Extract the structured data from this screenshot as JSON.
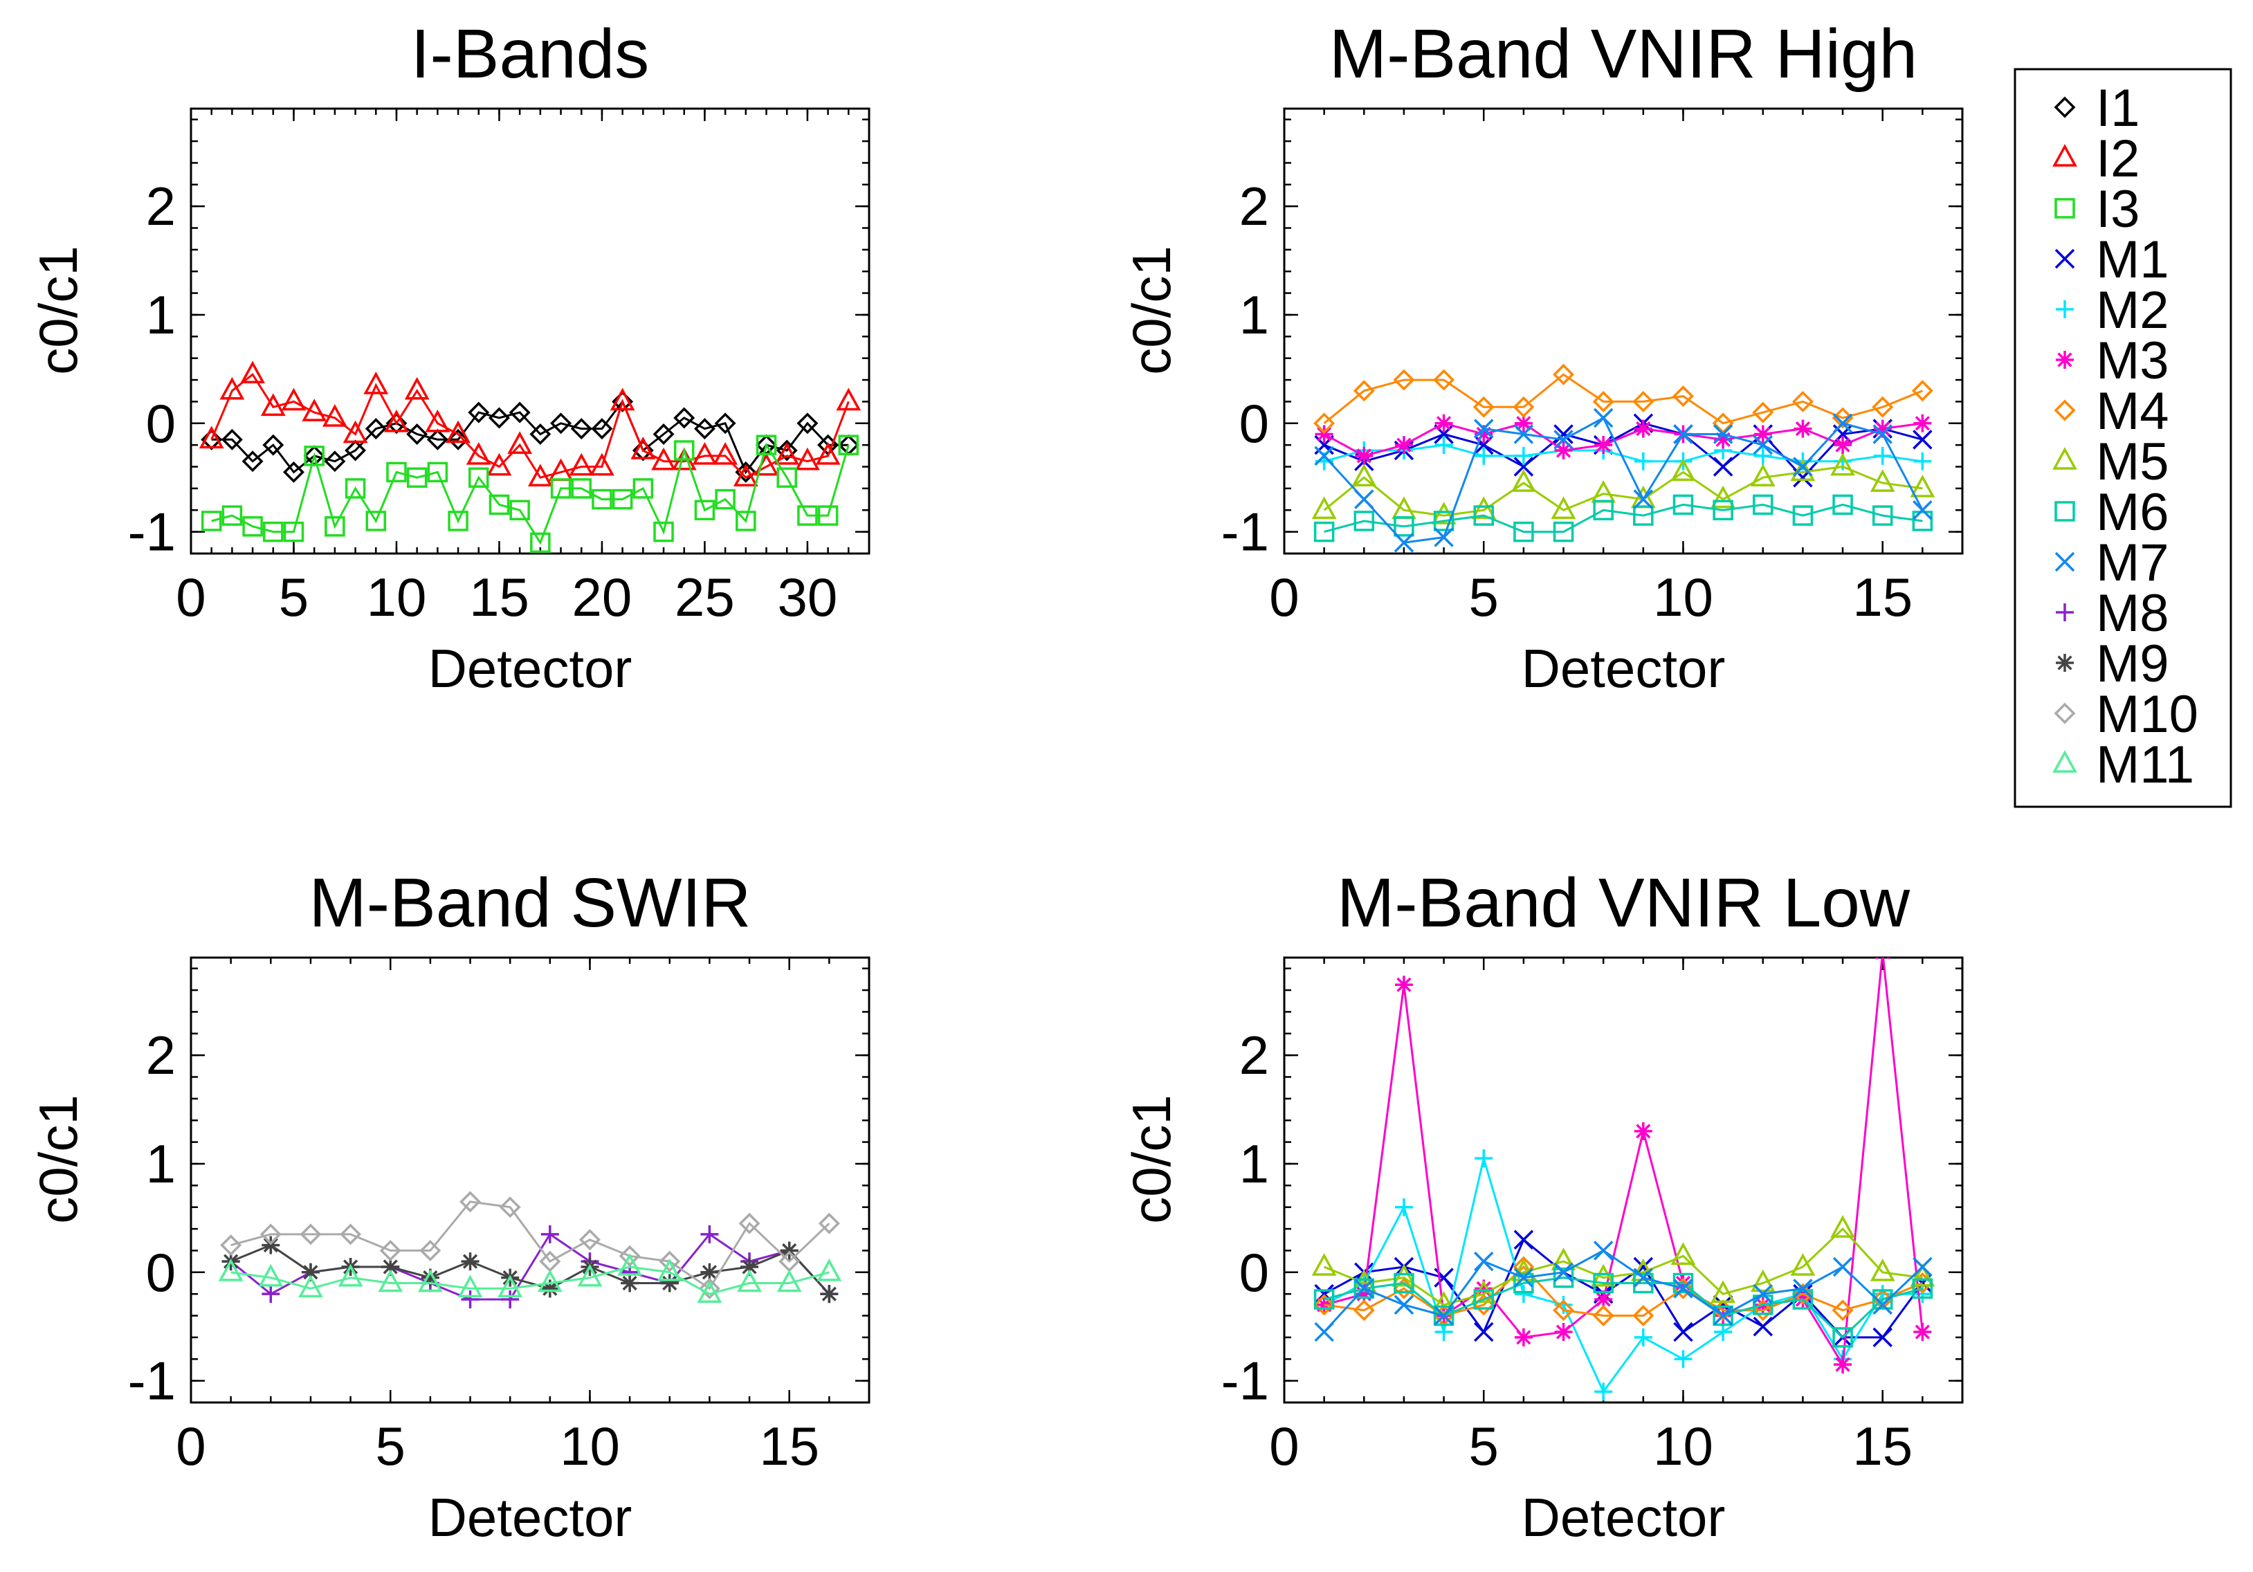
{
  "chart_data": [
    {
      "type": "line",
      "title": "I-Bands",
      "xlabel": "Detector",
      "ylabel": "c0/c1",
      "xlim": [
        0,
        33
      ],
      "ylim": [
        -1.2,
        2.9
      ],
      "xticks": [
        0,
        5,
        10,
        15,
        20,
        25,
        30
      ],
      "yticks": [
        -1,
        0,
        1,
        2
      ],
      "series": [
        {
          "name": "I1",
          "marker": "diamond",
          "color": "#000000",
          "x": [
            1,
            2,
            3,
            4,
            5,
            6,
            7,
            8,
            9,
            10,
            11,
            12,
            13,
            14,
            15,
            16,
            17,
            18,
            19,
            20,
            21,
            22,
            23,
            24,
            25,
            26,
            27,
            28,
            29,
            30,
            31,
            32
          ],
          "y": [
            -0.15,
            -0.15,
            -0.35,
            -0.2,
            -0.45,
            -0.3,
            -0.35,
            -0.25,
            -0.05,
            0,
            -0.1,
            -0.15,
            -0.15,
            0.1,
            0.05,
            0.1,
            -0.1,
            0,
            -0.05,
            -0.05,
            0.2,
            -0.25,
            -0.1,
            0.05,
            -0.05,
            0,
            -0.45,
            -0.2,
            -0.25,
            0,
            -0.2,
            -0.2
          ]
        },
        {
          "name": "I2",
          "marker": "triangle",
          "color": "#ff0000",
          "x": [
            1,
            2,
            3,
            4,
            5,
            6,
            7,
            8,
            9,
            10,
            11,
            12,
            13,
            14,
            15,
            16,
            17,
            18,
            19,
            20,
            21,
            22,
            23,
            24,
            25,
            26,
            27,
            28,
            29,
            30,
            31,
            32
          ],
          "y": [
            -0.15,
            0.3,
            0.45,
            0.15,
            0.2,
            0.1,
            0.05,
            -0.1,
            0.35,
            0,
            0.3,
            0,
            -0.1,
            -0.3,
            -0.4,
            -0.2,
            -0.5,
            -0.45,
            -0.4,
            -0.4,
            0.2,
            -0.25,
            -0.35,
            -0.35,
            -0.3,
            -0.3,
            -0.5,
            -0.4,
            -0.3,
            -0.35,
            -0.3,
            0.2
          ]
        },
        {
          "name": "I3",
          "marker": "square",
          "color": "#22dd22",
          "x": [
            1,
            2,
            3,
            4,
            5,
            6,
            7,
            8,
            9,
            10,
            11,
            12,
            13,
            14,
            15,
            16,
            17,
            18,
            19,
            20,
            21,
            22,
            23,
            24,
            25,
            26,
            27,
            28,
            29,
            30,
            31,
            32
          ],
          "y": [
            -0.9,
            -0.85,
            -0.95,
            -1,
            -1,
            -0.3,
            -0.95,
            -0.6,
            -0.9,
            -0.45,
            -0.5,
            -0.45,
            -0.9,
            -0.5,
            -0.75,
            -0.8,
            -1.1,
            -0.6,
            -0.6,
            -0.7,
            -0.7,
            -0.6,
            -1,
            -0.25,
            -0.8,
            -0.7,
            -0.9,
            -0.2,
            -0.5,
            -0.85,
            -0.85,
            -0.2
          ]
        }
      ]
    },
    {
      "type": "line",
      "title": "M-Band VNIR High",
      "xlabel": "Detector",
      "ylabel": "c0/c1",
      "xlim": [
        0,
        17
      ],
      "ylim": [
        -1.2,
        2.9
      ],
      "xticks": [
        0,
        5,
        10,
        15
      ],
      "yticks": [
        -1,
        0,
        1,
        2
      ],
      "series": [
        {
          "name": "M1",
          "marker": "x",
          "color": "#0000dd",
          "x": [
            1,
            2,
            3,
            4,
            5,
            6,
            7,
            8,
            9,
            10,
            11,
            12,
            13,
            14,
            15,
            16
          ],
          "y": [
            -0.2,
            -0.35,
            -0.25,
            -0.1,
            -0.2,
            -0.4,
            -0.1,
            -0.2,
            0,
            -0.1,
            -0.4,
            -0.1,
            -0.5,
            -0.1,
            -0.05,
            -0.15
          ]
        },
        {
          "name": "M2",
          "marker": "plus",
          "color": "#00e5ff",
          "x": [
            1,
            2,
            3,
            4,
            5,
            6,
            7,
            8,
            9,
            10,
            11,
            12,
            13,
            14,
            15,
            16
          ],
          "y": [
            -0.35,
            -0.25,
            -0.25,
            -0.2,
            -0.3,
            -0.3,
            -0.25,
            -0.25,
            -0.35,
            -0.35,
            -0.25,
            -0.3,
            -0.35,
            -0.35,
            -0.3,
            -0.35
          ]
        },
        {
          "name": "M3",
          "marker": "asterisk",
          "color": "#ff00cc",
          "x": [
            1,
            2,
            3,
            4,
            5,
            6,
            7,
            8,
            9,
            10,
            11,
            12,
            13,
            14,
            15,
            16
          ],
          "y": [
            -0.1,
            -0.3,
            -0.2,
            0,
            -0.1,
            0,
            -0.25,
            -0.2,
            -0.05,
            -0.1,
            -0.15,
            -0.1,
            -0.05,
            -0.2,
            -0.05,
            0
          ]
        },
        {
          "name": "M4",
          "marker": "diamond",
          "color": "#ff8800",
          "x": [
            1,
            2,
            3,
            4,
            5,
            6,
            7,
            8,
            9,
            10,
            11,
            12,
            13,
            14,
            15,
            16
          ],
          "y": [
            0,
            0.3,
            0.4,
            0.4,
            0.15,
            0.15,
            0.45,
            0.2,
            0.2,
            0.25,
            0,
            0.1,
            0.2,
            0.05,
            0.15,
            0.3
          ]
        },
        {
          "name": "M5",
          "marker": "triangle",
          "color": "#99cc00",
          "x": [
            1,
            2,
            3,
            4,
            5,
            6,
            7,
            8,
            9,
            10,
            11,
            12,
            13,
            14,
            15,
            16
          ],
          "y": [
            -0.8,
            -0.5,
            -0.8,
            -0.85,
            -0.8,
            -0.55,
            -0.8,
            -0.65,
            -0.7,
            -0.45,
            -0.7,
            -0.5,
            -0.45,
            -0.4,
            -0.55,
            -0.6
          ]
        },
        {
          "name": "M6",
          "marker": "square",
          "color": "#00ccaa",
          "x": [
            1,
            2,
            3,
            4,
            5,
            6,
            7,
            8,
            9,
            10,
            11,
            12,
            13,
            14,
            15,
            16
          ],
          "y": [
            -1,
            -0.9,
            -0.95,
            -0.9,
            -0.85,
            -1,
            -1,
            -0.8,
            -0.85,
            -0.75,
            -0.8,
            -0.75,
            -0.85,
            -0.75,
            -0.85,
            -0.9
          ]
        },
        {
          "name": "M7",
          "marker": "x",
          "color": "#1188ee",
          "x": [
            1,
            2,
            3,
            4,
            5,
            6,
            7,
            8,
            9,
            10,
            11,
            12,
            13,
            14,
            15,
            16
          ],
          "y": [
            -0.3,
            -0.7,
            -1.1,
            -1.05,
            -0.05,
            -0.1,
            -0.15,
            0.05,
            -0.7,
            -0.1,
            -0.1,
            -0.2,
            -0.4,
            0,
            -0.1,
            -0.8
          ]
        }
      ]
    },
    {
      "type": "line",
      "title": "M-Band SWIR",
      "xlabel": "Detector",
      "ylabel": "c0/c1",
      "xlim": [
        0,
        17
      ],
      "ylim": [
        -1.2,
        2.9
      ],
      "xticks": [
        0,
        5,
        10,
        15
      ],
      "yticks": [
        -1,
        0,
        1,
        2
      ],
      "series": [
        {
          "name": "M8",
          "marker": "plus",
          "color": "#8822cc",
          "x": [
            1,
            2,
            3,
            4,
            5,
            6,
            7,
            8,
            9,
            10,
            11,
            12,
            13,
            14,
            15,
            16
          ],
          "y": [
            0.1,
            -0.2,
            0,
            0.05,
            0.05,
            -0.1,
            -0.25,
            -0.25,
            0.35,
            0.1,
            0,
            -0.1,
            0.35,
            0.1,
            0.2,
            -0.2
          ]
        },
        {
          "name": "M9",
          "marker": "asterisk",
          "color": "#444444",
          "x": [
            1,
            2,
            3,
            4,
            5,
            6,
            7,
            8,
            9,
            10,
            11,
            12,
            13,
            14,
            15,
            16
          ],
          "y": [
            0.1,
            0.25,
            0,
            0.05,
            0.05,
            -0.05,
            0.1,
            -0.05,
            -0.15,
            0.05,
            -0.1,
            -0.1,
            0,
            0.05,
            0.2,
            -0.2
          ]
        },
        {
          "name": "M10",
          "marker": "diamond",
          "color": "#aaaaaa",
          "x": [
            1,
            2,
            3,
            4,
            5,
            6,
            7,
            8,
            9,
            10,
            11,
            12,
            13,
            14,
            15,
            16
          ],
          "y": [
            0.25,
            0.35,
            0.35,
            0.35,
            0.2,
            0.2,
            0.65,
            0.6,
            0.1,
            0.3,
            0.15,
            0.1,
            -0.15,
            0.45,
            0.1,
            0.45
          ]
        },
        {
          "name": "M11",
          "marker": "triangle",
          "color": "#55ee99",
          "x": [
            1,
            2,
            3,
            4,
            5,
            6,
            7,
            8,
            9,
            10,
            11,
            12,
            13,
            14,
            15,
            16
          ],
          "y": [
            0,
            -0.05,
            -0.15,
            -0.05,
            -0.1,
            -0.1,
            -0.15,
            -0.15,
            -0.1,
            -0.05,
            0.05,
            0,
            -0.2,
            -0.1,
            -0.1,
            0
          ]
        }
      ]
    },
    {
      "type": "line",
      "title": "M-Band VNIR Low",
      "xlabel": "Detector",
      "ylabel": "c0/c1",
      "xlim": [
        0,
        17
      ],
      "ylim": [
        -1.2,
        2.9
      ],
      "xticks": [
        0,
        5,
        10,
        15
      ],
      "yticks": [
        -1,
        0,
        1,
        2
      ],
      "series": [
        {
          "name": "M1",
          "marker": "x",
          "color": "#0000dd",
          "x": [
            1,
            2,
            3,
            4,
            5,
            6,
            7,
            8,
            9,
            10,
            11,
            12,
            13,
            14,
            15,
            16
          ],
          "y": [
            -0.2,
            0,
            0.05,
            -0.05,
            -0.55,
            0.3,
            0,
            -0.2,
            0.05,
            -0.55,
            -0.3,
            -0.5,
            -0.2,
            -0.6,
            -0.6,
            -0.1
          ]
        },
        {
          "name": "M2",
          "marker": "plus",
          "color": "#00e5ff",
          "x": [
            1,
            2,
            3,
            4,
            5,
            6,
            7,
            8,
            9,
            10,
            11,
            12,
            13,
            14,
            15,
            16
          ],
          "y": [
            -0.3,
            -0.1,
            0.6,
            -0.55,
            1.05,
            -0.2,
            -0.3,
            -1.1,
            -0.6,
            -0.8,
            -0.55,
            -0.3,
            -0.2,
            -0.8,
            -0.2,
            -0.2
          ]
        },
        {
          "name": "M3",
          "marker": "asterisk",
          "color": "#ff00cc",
          "x": [
            1,
            2,
            3,
            4,
            5,
            6,
            7,
            8,
            9,
            10,
            11,
            12,
            13,
            14,
            15,
            16
          ],
          "y": [
            -0.3,
            -0.2,
            2.65,
            -0.4,
            -0.15,
            -0.6,
            -0.55,
            -0.25,
            1.3,
            -0.1,
            -0.4,
            -0.3,
            -0.25,
            -0.85,
            2.95,
            -0.55
          ]
        },
        {
          "name": "M4",
          "marker": "diamond",
          "color": "#ff8800",
          "x": [
            1,
            2,
            3,
            4,
            5,
            6,
            7,
            8,
            9,
            10,
            11,
            12,
            13,
            14,
            15,
            16
          ],
          "y": [
            -0.3,
            -0.35,
            -0.15,
            -0.4,
            -0.3,
            0.05,
            -0.35,
            -0.4,
            -0.4,
            -0.15,
            -0.35,
            -0.35,
            -0.2,
            -0.35,
            -0.25,
            -0.1
          ]
        },
        {
          "name": "M5",
          "marker": "triangle",
          "color": "#99cc00",
          "x": [
            1,
            2,
            3,
            4,
            5,
            6,
            7,
            8,
            9,
            10,
            11,
            12,
            13,
            14,
            15,
            16
          ],
          "y": [
            0.05,
            -0.1,
            -0.05,
            -0.3,
            -0.2,
            0,
            0.1,
            -0.05,
            0,
            0.15,
            -0.2,
            -0.1,
            0.05,
            0.4,
            0,
            -0.05
          ]
        },
        {
          "name": "M6",
          "marker": "square",
          "color": "#00ccaa",
          "x": [
            1,
            2,
            3,
            4,
            5,
            6,
            7,
            8,
            9,
            10,
            11,
            12,
            13,
            14,
            15,
            16
          ],
          "y": [
            -0.25,
            -0.15,
            -0.1,
            -0.4,
            -0.25,
            -0.1,
            -0.05,
            -0.1,
            -0.1,
            -0.1,
            -0.4,
            -0.3,
            -0.25,
            -0.6,
            -0.25,
            -0.15
          ]
        },
        {
          "name": "M7",
          "marker": "x",
          "color": "#1188ee",
          "x": [
            1,
            2,
            3,
            4,
            5,
            6,
            7,
            8,
            9,
            10,
            11,
            12,
            13,
            14,
            15,
            16
          ],
          "y": [
            -0.55,
            -0.15,
            -0.3,
            -0.4,
            0.1,
            -0.05,
            0,
            0.2,
            -0.05,
            -0.15,
            -0.4,
            -0.2,
            -0.15,
            0.05,
            -0.3,
            0.05
          ]
        }
      ]
    }
  ],
  "legend": {
    "position": "right",
    "entries": [
      {
        "name": "I1",
        "marker": "diamond",
        "color": "#000000"
      },
      {
        "name": "I2",
        "marker": "triangle",
        "color": "#ff0000"
      },
      {
        "name": "I3",
        "marker": "square",
        "color": "#22dd22"
      },
      {
        "name": "M1",
        "marker": "x",
        "color": "#0000dd"
      },
      {
        "name": "M2",
        "marker": "plus",
        "color": "#00e5ff"
      },
      {
        "name": "M3",
        "marker": "asterisk",
        "color": "#ff00cc"
      },
      {
        "name": "M4",
        "marker": "diamond",
        "color": "#ff8800"
      },
      {
        "name": "M5",
        "marker": "triangle",
        "color": "#99cc00"
      },
      {
        "name": "M6",
        "marker": "square",
        "color": "#00ccaa"
      },
      {
        "name": "M7",
        "marker": "x",
        "color": "#1188ee"
      },
      {
        "name": "M8",
        "marker": "plus",
        "color": "#8822cc"
      },
      {
        "name": "M9",
        "marker": "asterisk",
        "color": "#444444"
      },
      {
        "name": "M10",
        "marker": "diamond",
        "color": "#aaaaaa"
      },
      {
        "name": "M11",
        "marker": "triangle",
        "color": "#55ee99"
      }
    ]
  }
}
